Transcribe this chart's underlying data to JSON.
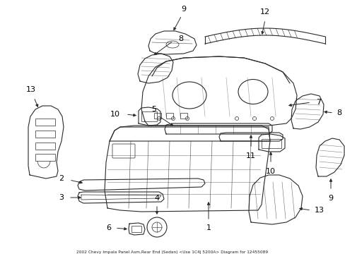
{
  "title": "2002 Chevy Impala Panel Asm,Rear End (Sedan) <Use 1C4J 5200A> Diagram for 12455089",
  "background_color": "#ffffff",
  "line_color": "#2a2a2a",
  "label_color": "#000000",
  "fig_width": 4.89,
  "fig_height": 3.6,
  "dpi": 100
}
